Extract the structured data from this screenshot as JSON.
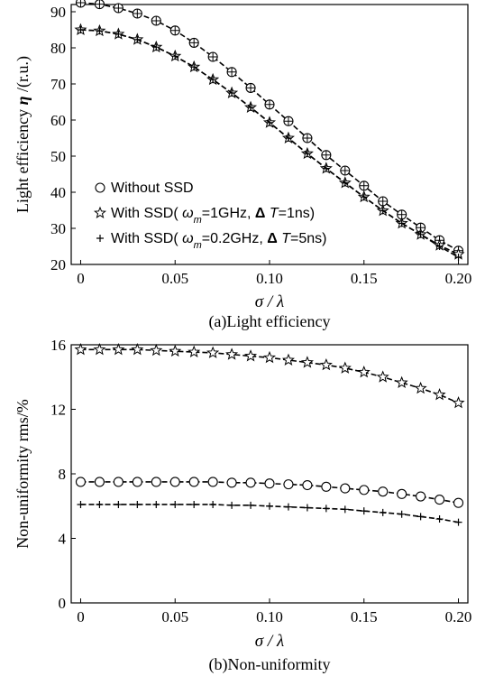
{
  "chart_data": [
    {
      "type": "line",
      "title": "",
      "caption": "(a)Light efficiency",
      "xlabel": "σ / λ",
      "ylabel_prefix": "Light efficiency  ",
      "ylabel_symbol": "η",
      "ylabel_suffix": " /(r.u.)",
      "xlim": [
        -0.005,
        0.205
      ],
      "ylim": [
        20,
        92
      ],
      "x_ticks": [
        0,
        0.05,
        0.1,
        0.15,
        0.2
      ],
      "x_tick_labels": [
        "0",
        "0.05",
        "0.10",
        "0.15",
        "0.20"
      ],
      "y_ticks": [
        20,
        30,
        40,
        50,
        60,
        70,
        80,
        90
      ],
      "y_tick_labels": [
        "20",
        "30",
        "40",
        "50",
        "60",
        "70",
        "80",
        "90"
      ],
      "legend_position": "bottom-left",
      "x": [
        0,
        0.01,
        0.02,
        0.03,
        0.04,
        0.05,
        0.06,
        0.07,
        0.08,
        0.09,
        0.1,
        0.11,
        0.12,
        0.13,
        0.14,
        0.15,
        0.16,
        0.17,
        0.18,
        0.19,
        0.2
      ],
      "series": [
        {
          "name": "Without SSD",
          "legend_parts": [
            {
              "t": "Without SSD"
            }
          ],
          "marker": "circle",
          "values": [
            92.5,
            92.1,
            91.0,
            89.5,
            87.5,
            84.8,
            81.4,
            77.5,
            73.3,
            68.9,
            64.3,
            59.7,
            55.0,
            50.3,
            46.0,
            41.8,
            37.5,
            33.8,
            30.2,
            26.7,
            23.8
          ]
        },
        {
          "name": "With SSD( ωm=1GHz, ΔT=1ns)",
          "legend_parts": [
            {
              "t": "With SSD( "
            },
            {
              "t": "ω",
              "i": true
            },
            {
              "t": "m",
              "sub": true,
              "i": true
            },
            {
              "t": "=1GHz, "
            },
            {
              "t": "Δ",
              "b": true
            },
            {
              "t": " "
            },
            {
              "t": "T",
              "i": true
            },
            {
              "t": "=1ns)"
            }
          ],
          "marker": "star",
          "values": [
            85.0,
            84.7,
            83.8,
            82.3,
            80.2,
            77.7,
            74.7,
            71.2,
            67.5,
            63.5,
            59.3,
            55.0,
            50.7,
            46.6,
            42.6,
            38.7,
            34.9,
            31.4,
            28.3,
            25.3,
            22.8
          ]
        },
        {
          "name": "With SSD( ωm=0.2GHz, ΔT=5ns)",
          "legend_parts": [
            {
              "t": "With SSD( "
            },
            {
              "t": "ω",
              "i": true
            },
            {
              "t": "m",
              "sub": true,
              "i": true
            },
            {
              "t": "=0.2GHz, "
            },
            {
              "t": "Δ",
              "b": true
            },
            {
              "t": " "
            },
            {
              "t": "T",
              "i": true
            },
            {
              "t": "=5ns)"
            }
          ],
          "marker": "plus",
          "values": [
            85.0,
            84.7,
            83.8,
            82.3,
            80.2,
            77.7,
            74.7,
            71.2,
            67.5,
            63.5,
            59.3,
            55.0,
            50.7,
            46.6,
            42.6,
            38.7,
            34.9,
            31.4,
            28.3,
            25.0,
            22.0
          ]
        }
      ]
    },
    {
      "type": "line",
      "title": "",
      "caption": "(b)Non-uniformity",
      "xlabel": "σ / λ",
      "ylabel": "Non-uniformity rms/%",
      "xlim": [
        -0.005,
        0.205
      ],
      "ylim": [
        0,
        16
      ],
      "x_ticks": [
        0,
        0.05,
        0.1,
        0.15,
        0.2
      ],
      "x_tick_labels": [
        "0",
        "0.05",
        "0.10",
        "0.15",
        "0.20"
      ],
      "y_ticks": [
        0,
        4,
        8,
        12,
        16
      ],
      "y_tick_labels": [
        "0",
        "4",
        "8",
        "12",
        "16"
      ],
      "x": [
        0,
        0.01,
        0.02,
        0.03,
        0.04,
        0.05,
        0.06,
        0.07,
        0.08,
        0.09,
        0.1,
        0.11,
        0.12,
        0.13,
        0.14,
        0.15,
        0.16,
        0.17,
        0.18,
        0.19,
        0.2
      ],
      "series": [
        {
          "name": "Without SSD",
          "marker": "circle",
          "values": [
            7.5,
            7.5,
            7.5,
            7.5,
            7.5,
            7.5,
            7.5,
            7.5,
            7.45,
            7.45,
            7.4,
            7.35,
            7.3,
            7.2,
            7.1,
            7.0,
            6.9,
            6.75,
            6.6,
            6.4,
            6.2
          ]
        },
        {
          "name": "With SSD( ωm=1GHz, ΔT=1ns)",
          "marker": "star",
          "values": [
            15.7,
            15.7,
            15.7,
            15.7,
            15.65,
            15.6,
            15.55,
            15.5,
            15.4,
            15.3,
            15.2,
            15.05,
            14.9,
            14.75,
            14.55,
            14.3,
            14.0,
            13.65,
            13.3,
            12.9,
            12.4
          ]
        },
        {
          "name": "With SSD( ωm=0.2GHz, ΔT=5ns)",
          "marker": "plus",
          "values": [
            6.1,
            6.1,
            6.1,
            6.1,
            6.1,
            6.1,
            6.1,
            6.1,
            6.05,
            6.05,
            6.0,
            5.95,
            5.9,
            5.85,
            5.8,
            5.7,
            5.6,
            5.5,
            5.35,
            5.2,
            5.0
          ]
        }
      ]
    }
  ]
}
